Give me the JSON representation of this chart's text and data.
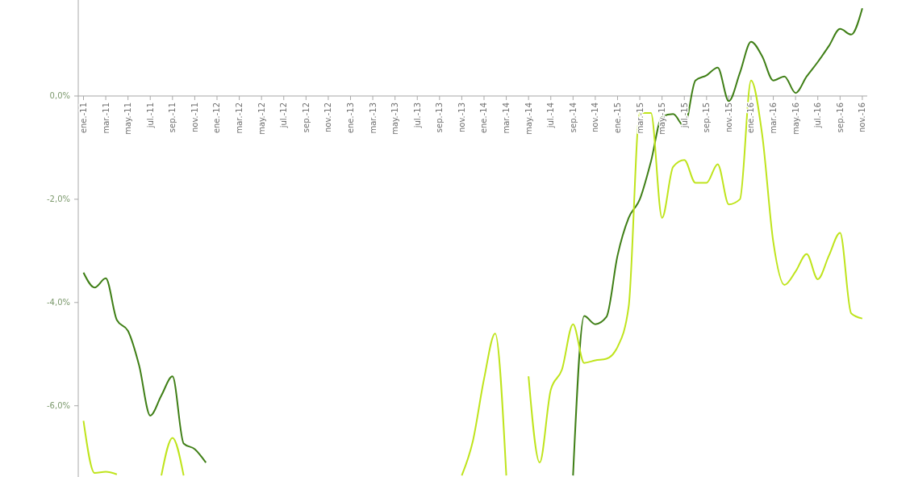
{
  "chart_data": {
    "type": "line",
    "categories": [
      "ene.-11",
      null,
      "mar.-11",
      null,
      "may.-11",
      null,
      "jul.-11",
      null,
      "sep.-11",
      null,
      "nov.-11",
      null,
      "ene.-12",
      null,
      "mar.-12",
      null,
      "may.-12",
      null,
      "jul.-12",
      null,
      "sep.-12",
      null,
      "nov.-12",
      null,
      "ene.-13",
      null,
      "mar.-13",
      null,
      "may.-13",
      null,
      "jul.-13",
      null,
      "sep.-13",
      null,
      "nov.-13",
      null,
      "ene.-14",
      null,
      "mar.-14",
      null,
      "may.-14",
      null,
      "jul.-14",
      null,
      "sep.-14",
      null,
      "nov.-14",
      null,
      "ene.-15",
      null,
      "mar.-15",
      null,
      "may.-15",
      null,
      "jul.-15",
      null,
      "sep.-15",
      null,
      "nov.-15",
      null,
      "ene.-16",
      null,
      "mar.-16",
      null,
      "may.-16",
      null,
      "jul.-16",
      null,
      "sep.-16",
      null,
      "nov.-16"
    ],
    "series": [
      {
        "color": "#3f7f16",
        "values": [
          -3.42,
          -3.71,
          -3.53,
          -4.34,
          -4.55,
          -5.22,
          -6.19,
          -5.8,
          -5.43,
          -6.73,
          -6.84,
          -7.1,
          null,
          null,
          null,
          null,
          null,
          null,
          null,
          null,
          null,
          null,
          null,
          null,
          null,
          null,
          null,
          null,
          null,
          null,
          null,
          null,
          null,
          null,
          null,
          null,
          null,
          null,
          null,
          null,
          null,
          null,
          null,
          null,
          -7.35,
          -4.26,
          -4.42,
          -4.28,
          -3.09,
          -2.36,
          -2.0,
          -1.27,
          -0.4,
          -0.35,
          -0.59,
          0.3,
          0.4,
          0.55,
          -0.1,
          0.45,
          1.05,
          0.77,
          0.3,
          0.38,
          0.06,
          0.38,
          0.66,
          0.97,
          1.3,
          1.19,
          1.7
        ]
      },
      {
        "color": "#bfe41c",
        "values": [
          -6.29,
          -7.3,
          -7.28,
          -7.33,
          null,
          null,
          null,
          -7.35,
          -6.62,
          -7.35,
          null,
          null,
          null,
          null,
          null,
          null,
          null,
          null,
          null,
          null,
          null,
          null,
          null,
          null,
          null,
          null,
          null,
          null,
          null,
          null,
          null,
          null,
          null,
          null,
          -7.35,
          -6.68,
          -5.48,
          -4.6,
          -7.35,
          null,
          -5.43,
          -7.1,
          -5.69,
          -5.3,
          -4.42,
          -5.17,
          -5.12,
          -5.09,
          -4.86,
          -4.08,
          -0.33,
          -0.33,
          -2.36,
          -1.37,
          -1.24,
          -1.68,
          -1.68,
          -1.32,
          -2.1,
          -2.0,
          0.3,
          -0.75,
          -2.83,
          -3.66,
          -3.4,
          -3.06,
          -3.55,
          -3.09,
          -2.65,
          -4.21,
          -4.31
        ]
      }
    ],
    "ylim": [
      -7.38,
      1.86
    ],
    "yticks": [
      {
        "value": 0,
        "label": "0,0%"
      },
      {
        "value": -2,
        "label": "-2,0%"
      },
      {
        "value": -4,
        "label": "-4,0%"
      },
      {
        "value": -6,
        "label": "-6,0%"
      }
    ],
    "grid": false,
    "marker": "none",
    "line_style": "solid"
  }
}
